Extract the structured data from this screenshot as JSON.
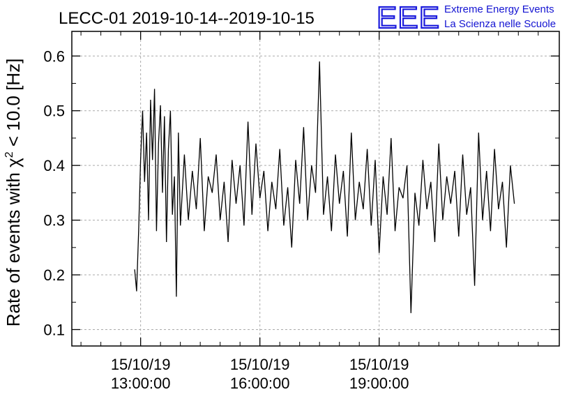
{
  "logo": {
    "letters": "EEE",
    "line1": "Extreme Energy Events",
    "line2": "La Scienza nelle Scuole",
    "color": "#1414d2"
  },
  "chart_data": {
    "type": "line",
    "title": "LECC-01 2019-10-14--2019-10-15",
    "xlabel": "",
    "ylabel_prefix": "Rate of events with χ",
    "ylabel_sup": "2",
    "ylabel_suffix": " < 10.0 [Hz]",
    "x_unit": "hours",
    "xlim": [
      11.27,
      23.53
    ],
    "ylim": [
      0.07,
      0.645
    ],
    "yticks": [
      0.1,
      0.2,
      0.3,
      0.4,
      0.5,
      0.6
    ],
    "ytick_labels": [
      "0.1",
      "0.2",
      "0.3",
      "0.4",
      "0.5",
      "0.6"
    ],
    "xticks_major": [
      {
        "x": 13,
        "date": "15/10/19",
        "time": "13:00:00"
      },
      {
        "x": 16,
        "date": "15/10/19",
        "time": "16:00:00"
      },
      {
        "x": 19,
        "date": "15/10/19",
        "time": "19:00:00"
      }
    ],
    "xticks_minor": [
      11.5,
      12,
      12.5,
      13.5,
      14,
      14.5,
      15,
      15.5,
      16.5,
      17,
      17.5,
      18,
      18.5,
      19.5,
      20,
      20.5,
      21,
      21.5,
      22,
      22.5,
      23
    ],
    "grid": true,
    "line_color": "#000000",
    "series": [
      {
        "x": [
          12.85,
          12.9,
          12.95,
          13.0,
          13.05,
          13.1,
          13.15,
          13.2,
          13.25,
          13.3,
          13.35,
          13.4,
          13.45,
          13.5,
          13.55,
          13.6,
          13.65,
          13.7,
          13.75,
          13.8,
          13.85,
          13.9,
          13.95,
          14.0,
          14.1,
          14.2,
          14.3,
          14.4,
          14.5,
          14.6,
          14.7,
          14.8,
          14.9,
          15.0,
          15.1,
          15.2,
          15.3,
          15.4,
          15.5,
          15.6,
          15.7,
          15.8,
          15.9,
          16.0,
          16.1,
          16.2,
          16.3,
          16.4,
          16.5,
          16.6,
          16.7,
          16.8,
          16.9,
          17.0,
          17.1,
          17.2,
          17.3,
          17.4,
          17.5,
          17.6,
          17.7,
          17.8,
          17.9,
          18.0,
          18.1,
          18.2,
          18.3,
          18.4,
          18.5,
          18.6,
          18.7,
          18.8,
          18.9,
          19.0,
          19.1,
          19.2,
          19.3,
          19.4,
          19.5,
          19.6,
          19.7,
          19.8,
          19.9,
          20.0,
          20.1,
          20.2,
          20.3,
          20.4,
          20.5,
          20.6,
          20.7,
          20.8,
          20.9,
          21.0,
          21.1,
          21.2,
          21.3,
          21.4,
          21.5,
          21.6,
          21.7,
          21.8,
          21.9,
          22.0,
          22.1,
          22.2,
          22.3,
          22.4
        ],
        "y": [
          0.21,
          0.17,
          0.28,
          0.41,
          0.5,
          0.37,
          0.46,
          0.3,
          0.52,
          0.41,
          0.54,
          0.28,
          0.44,
          0.51,
          0.35,
          0.49,
          0.26,
          0.43,
          0.5,
          0.31,
          0.38,
          0.16,
          0.46,
          0.29,
          0.42,
          0.3,
          0.39,
          0.32,
          0.45,
          0.28,
          0.38,
          0.35,
          0.42,
          0.3,
          0.37,
          0.26,
          0.41,
          0.33,
          0.4,
          0.29,
          0.48,
          0.31,
          0.44,
          0.34,
          0.39,
          0.28,
          0.37,
          0.32,
          0.43,
          0.29,
          0.36,
          0.25,
          0.41,
          0.33,
          0.47,
          0.3,
          0.4,
          0.35,
          0.59,
          0.31,
          0.38,
          0.28,
          0.42,
          0.33,
          0.39,
          0.27,
          0.46,
          0.3,
          0.37,
          0.32,
          0.43,
          0.29,
          0.41,
          0.24,
          0.38,
          0.31,
          0.45,
          0.28,
          0.36,
          0.34,
          0.4,
          0.13,
          0.35,
          0.29,
          0.41,
          0.32,
          0.37,
          0.26,
          0.44,
          0.3,
          0.38,
          0.33,
          0.39,
          0.27,
          0.42,
          0.31,
          0.36,
          0.18,
          0.46,
          0.3,
          0.39,
          0.28,
          0.43,
          0.32,
          0.37,
          0.25,
          0.4,
          0.33
        ]
      }
    ]
  }
}
